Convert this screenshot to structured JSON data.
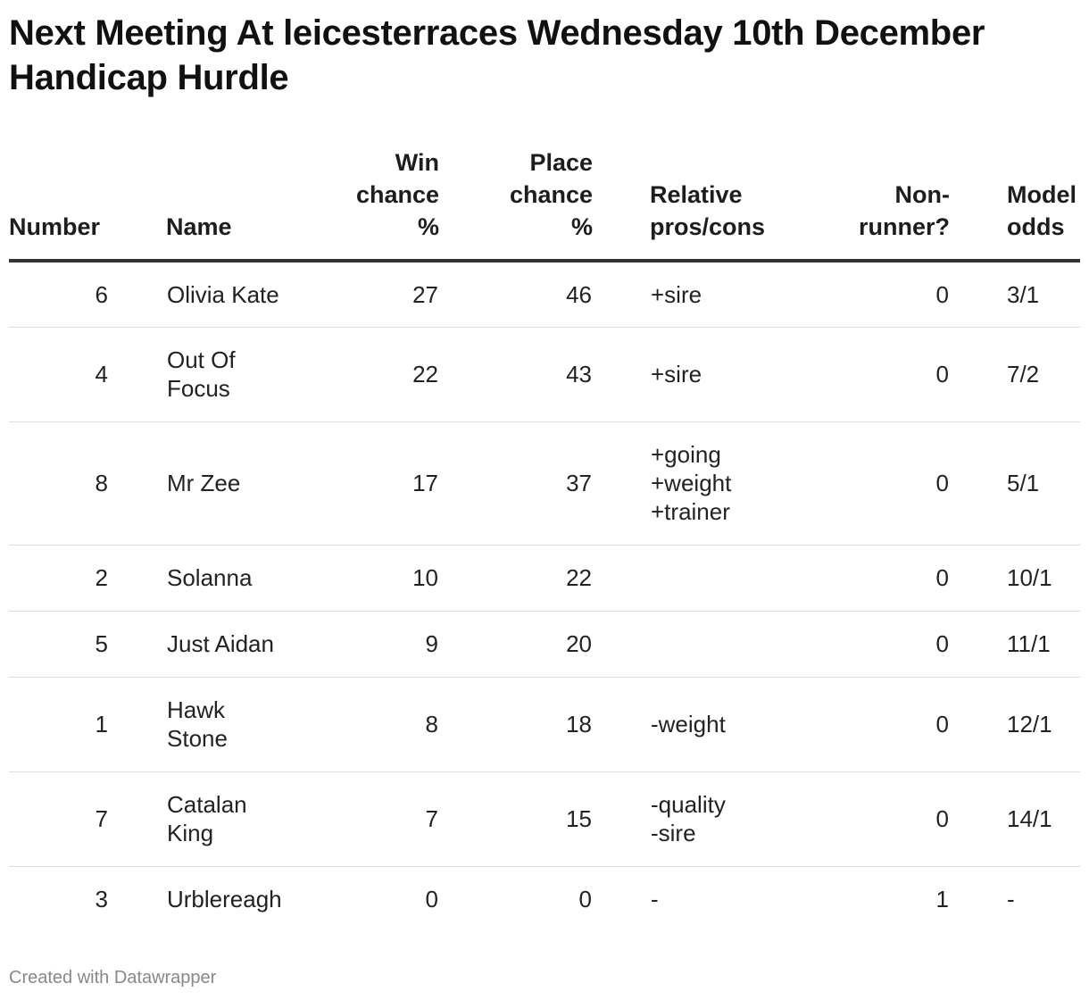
{
  "title": "Next Meeting At leicesterraces Wednesday 10th December Handicap Hurdle",
  "columns": {
    "number": "Number",
    "name": "Name",
    "win": "Win\nchance\n%",
    "place": "Place\nchance\n%",
    "pros": "Relative\npros/cons",
    "nonrunner": "Non-\nrunner?",
    "odds": "Model\nodds"
  },
  "rows": [
    {
      "number": "6",
      "name": "Olivia Kate",
      "win": "27",
      "place": "46",
      "pros": "+sire",
      "nonrunner": "0",
      "odds": "3/1"
    },
    {
      "number": "4",
      "name": "Out Of\nFocus",
      "win": "22",
      "place": "43",
      "pros": "+sire",
      "nonrunner": "0",
      "odds": "7/2"
    },
    {
      "number": "8",
      "name": "Mr Zee",
      "win": "17",
      "place": "37",
      "pros": "+going\n+weight\n+trainer",
      "nonrunner": "0",
      "odds": "5/1"
    },
    {
      "number": "2",
      "name": "Solanna",
      "win": "10",
      "place": "22",
      "pros": "",
      "nonrunner": "0",
      "odds": "10/1"
    },
    {
      "number": "5",
      "name": "Just Aidan",
      "win": "9",
      "place": "20",
      "pros": "",
      "nonrunner": "0",
      "odds": "11/1"
    },
    {
      "number": "1",
      "name": "Hawk\nStone",
      "win": "8",
      "place": "18",
      "pros": "-weight",
      "nonrunner": "0",
      "odds": "12/1"
    },
    {
      "number": "7",
      "name": "Catalan\nKing",
      "win": "7",
      "place": "15",
      "pros": "-quality\n-sire",
      "nonrunner": "0",
      "odds": "14/1"
    },
    {
      "number": "3",
      "name": "Urblereagh",
      "win": "0",
      "place": "0",
      "pros": "-",
      "nonrunner": "1",
      "odds": "-"
    }
  ],
  "footer": "Created with Datawrapper"
}
